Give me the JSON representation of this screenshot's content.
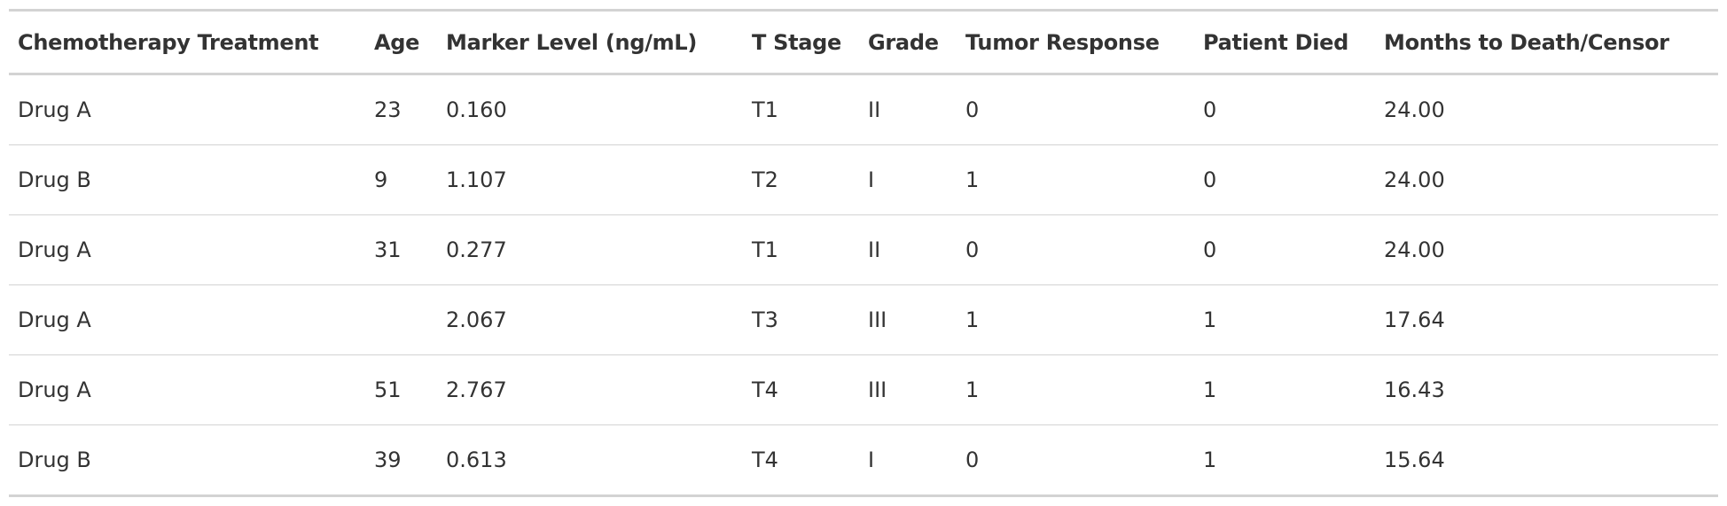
{
  "table": {
    "headers": [
      "Chemotherapy Treatment",
      "Age",
      "Marker Level (ng/mL)",
      "T Stage",
      "Grade",
      "Tumor Response",
      "Patient Died",
      "Months to Death/Censor"
    ],
    "rows": [
      [
        "Drug A",
        "23",
        "0.160",
        "T1",
        "II",
        "0",
        "0",
        "24.00"
      ],
      [
        "Drug B",
        "9",
        "1.107",
        "T2",
        "I",
        "1",
        "0",
        "24.00"
      ],
      [
        "Drug A",
        "31",
        "0.277",
        "T1",
        "II",
        "0",
        "0",
        "24.00"
      ],
      [
        "Drug A",
        "",
        "2.067",
        "T3",
        "III",
        "1",
        "1",
        "17.64"
      ],
      [
        "Drug A",
        "51",
        "2.767",
        "T4",
        "III",
        "1",
        "1",
        "16.43"
      ],
      [
        "Drug B",
        "39",
        "0.613",
        "T4",
        "I",
        "0",
        "1",
        "15.64"
      ]
    ]
  },
  "colors": {
    "text": "#333333",
    "border": "#d3d3d3",
    "background": "#ffffff"
  }
}
